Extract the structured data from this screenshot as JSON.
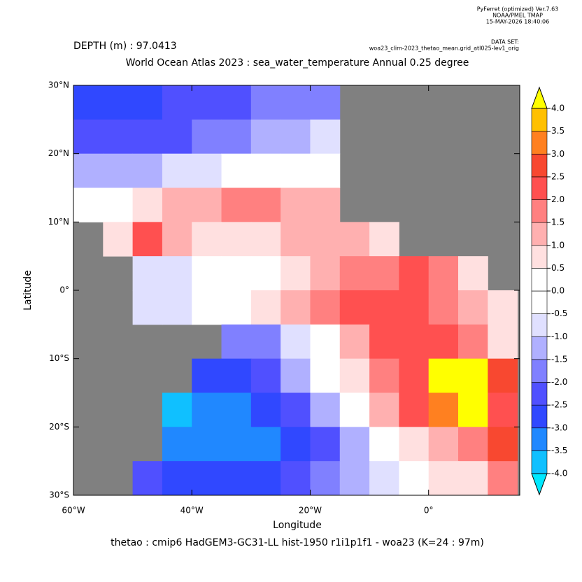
{
  "chart_data": {
    "type": "heatmap",
    "header": {
      "software": "PyFerret (optimized) Ver.7.63",
      "org": "NOAA/PMEL TMAP",
      "date": "15-MAY-2026 18:40:06",
      "dataset_label": "DATA SET:",
      "dataset": "woa23_clim-2023_thetao_mean.grid_atl025-lev1_orig"
    },
    "depth": "DEPTH (m) : 97.0413",
    "title": "World Ocean Atlas 2023 : sea_water_temperature Annual  0.25 degree",
    "xlabel": "Longitude",
    "ylabel": "Latitude",
    "caption": "thetao : cmip6 HadGEM3-GC31-LL hist-1950 r1i1p1f1 - woa23  (K=24 : 97m)",
    "land_color": "#808080",
    "xlim": [
      -60,
      15.4
    ],
    "ylim": [
      -30,
      30
    ],
    "xticks": [
      {
        "value": -60,
        "label": "60°W"
      },
      {
        "value": -40,
        "label": "40°W"
      },
      {
        "value": -20,
        "label": "20°W"
      },
      {
        "value": 0,
        "label": "0°"
      }
    ],
    "yticks": [
      {
        "value": 30,
        "label": "30°N"
      },
      {
        "value": 20,
        "label": "20°N"
      },
      {
        "value": 10,
        "label": "10°N"
      },
      {
        "value": 0,
        "label": "0°"
      },
      {
        "value": -10,
        "label": "10°S"
      },
      {
        "value": -20,
        "label": "20°S"
      },
      {
        "value": -30,
        "label": "30°S"
      }
    ],
    "field": {
      "lon_edges": [
        -60,
        -55,
        -50,
        -45,
        -40,
        -35,
        -30,
        -25,
        -20,
        -15,
        -10,
        -5,
        0,
        5,
        10,
        15
      ],
      "lat_edges": [
        30,
        25,
        20,
        15,
        10,
        5,
        0,
        -5,
        -10,
        -15,
        -20,
        -25,
        -30
      ],
      "values": [
        [
          -2.5,
          -2.5,
          -2.5,
          -2.2,
          -2,
          -2,
          -1.8,
          -1.5,
          -1.5,
          null,
          null,
          null,
          null,
          null,
          null
        ],
        [
          -2,
          -2,
          -2.2,
          -2,
          -1.8,
          -1.5,
          -1.2,
          -1,
          -0.8,
          null,
          null,
          null,
          null,
          null,
          null
        ],
        [
          -1,
          -1,
          -1,
          -0.8,
          -0.5,
          -0.3,
          0,
          0.5,
          0.3,
          null,
          null,
          null,
          null,
          null,
          null
        ],
        [
          -0.3,
          0.3,
          1,
          1.5,
          1.5,
          2,
          1.8,
          1.5,
          1.2,
          null,
          null,
          null,
          null,
          null,
          null
        ],
        [
          null,
          1,
          2.3,
          1.5,
          1,
          0.8,
          0.8,
          1.3,
          1.5,
          1.5,
          1,
          null,
          null,
          null,
          null
        ],
        [
          null,
          null,
          -0.5,
          -0.5,
          0,
          0,
          0.3,
          0.8,
          1.5,
          2,
          2,
          2.5,
          2,
          1,
          null
        ],
        [
          null,
          null,
          -0.5,
          -0.5,
          -0.3,
          0.5,
          1,
          1.5,
          2,
          2.3,
          2.5,
          2.5,
          2,
          1.5,
          0.8
        ],
        [
          null,
          null,
          null,
          null,
          null,
          -1.5,
          -1.5,
          -0.5,
          0.5,
          1.5,
          2.3,
          2.5,
          2.5,
          2,
          1
        ],
        [
          null,
          null,
          null,
          null,
          -2.5,
          -2.5,
          -2,
          -1.2,
          0,
          1,
          2,
          2.5,
          4.5,
          4.5,
          3
        ],
        [
          null,
          null,
          null,
          -3.5,
          -3,
          -3,
          -2.5,
          -2,
          -1.2,
          0,
          1.5,
          2.5,
          3.5,
          4.5,
          2.5
        ],
        [
          null,
          null,
          null,
          -3,
          -3,
          -3,
          -3,
          -2.5,
          -2,
          -1,
          0,
          1,
          1.5,
          2,
          3
        ],
        [
          null,
          null,
          -2,
          -2.5,
          -2.5,
          -2.5,
          -2.5,
          -2,
          -1.5,
          -1,
          -0.5,
          0.3,
          0.8,
          1,
          2
        ]
      ]
    },
    "colorbar": {
      "levels": [
        {
          "value": -4,
          "label": "-4.0"
        },
        {
          "value": -3.5,
          "label": "-3.5"
        },
        {
          "value": -3,
          "label": "-3.0"
        },
        {
          "value": -2.5,
          "label": "-2.5"
        },
        {
          "value": -2,
          "label": "-2.0"
        },
        {
          "value": -1.5,
          "label": "-1.5"
        },
        {
          "value": -1,
          "label": "-1.0"
        },
        {
          "value": -0.5,
          "label": "-0.5"
        },
        {
          "value": 0,
          "label": "0.0"
        },
        {
          "value": 0.5,
          "label": "0.5"
        },
        {
          "value": 1,
          "label": "1.0"
        },
        {
          "value": 1.5,
          "label": "1.5"
        },
        {
          "value": 2,
          "label": "2.0"
        },
        {
          "value": 2.5,
          "label": "2.5"
        },
        {
          "value": 3,
          "label": "3.0"
        },
        {
          "value": 3.5,
          "label": "3.5"
        },
        {
          "value": 4,
          "label": "4.0"
        }
      ],
      "colors": [
        "#10c0ff",
        "#2088ff",
        "#3048ff",
        "#5050ff",
        "#8080ff",
        "#b0b0ff",
        "#e0e0ff",
        "#ffffff",
        "#ffffff",
        "#ffe0e0",
        "#ffb0b0",
        "#ff8080",
        "#ff5050",
        "#f84830",
        "#ff8020",
        "#ffc000"
      ],
      "under_color": "#00e8ff",
      "over_color": "#ffff00"
    }
  }
}
